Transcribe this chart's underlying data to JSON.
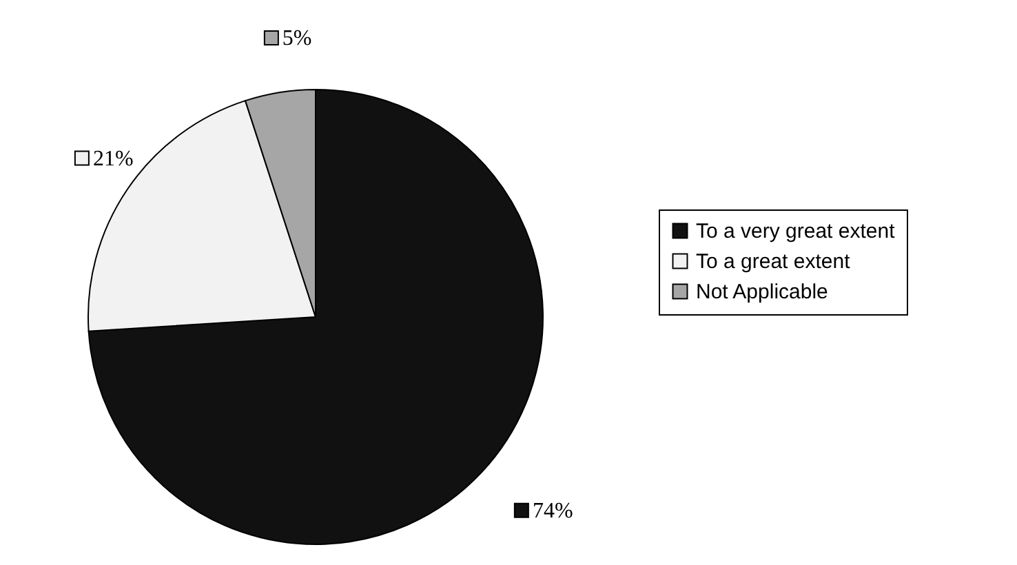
{
  "chart_data": {
    "type": "pie",
    "categories": [
      "To a very great extent",
      "To a great extent",
      "Not Applicable"
    ],
    "values": [
      74,
      21,
      5
    ],
    "colors": [
      "#111111",
      "#f2f2f2",
      "#a6a6a6"
    ],
    "value_labels": [
      "74%",
      "21%",
      "5%"
    ],
    "legend": "right"
  }
}
